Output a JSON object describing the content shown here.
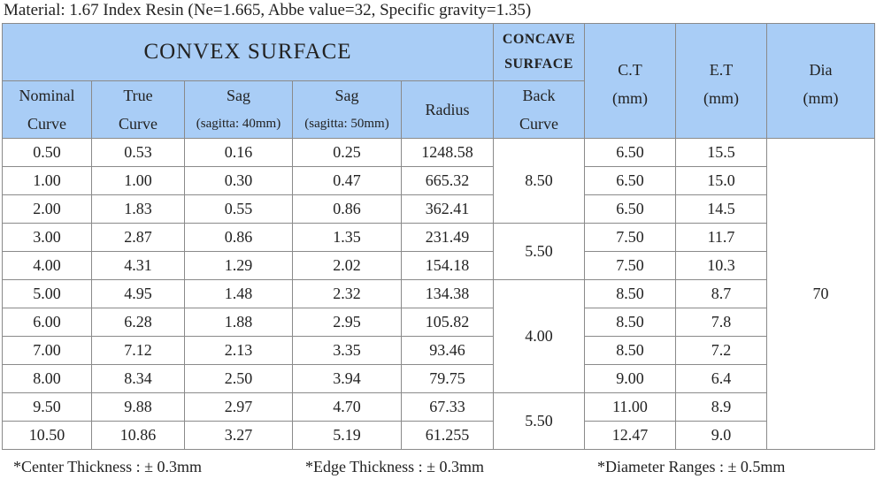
{
  "title": "Material: 1.67 Index Resin (Ne=1.665, Abbe value=32, Specific gravity=1.35)",
  "table": {
    "header": {
      "group_convex": "CONVEX  SURFACE",
      "group_concave": [
        "CONCAVE",
        "SURFACE"
      ],
      "columns": [
        [
          "Nominal",
          "Curve"
        ],
        [
          "True",
          "Curve"
        ],
        [
          "Sag",
          "(sagitta: 40mm)"
        ],
        [
          "Sag",
          "(sagitta: 50mm)"
        ],
        [
          "Radius"
        ],
        [
          "Back",
          "Curve"
        ],
        [
          "C.T",
          "(mm)"
        ],
        [
          "E.T",
          "(mm)"
        ],
        [
          "Dia",
          "(mm)"
        ]
      ]
    },
    "rows": [
      [
        "0.50",
        "0.53",
        "0.16",
        "0.25",
        "1248.58",
        "8.50",
        "6.50",
        "15.5",
        "70"
      ],
      [
        "1.00",
        "1.00",
        "0.30",
        "0.47",
        "665.32",
        null,
        "6.50",
        "15.0",
        null
      ],
      [
        "2.00",
        "1.83",
        "0.55",
        "0.86",
        "362.41",
        null,
        "6.50",
        "14.5",
        null
      ],
      [
        "3.00",
        "2.87",
        "0.86",
        "1.35",
        "231.49",
        "5.50",
        "7.50",
        "11.7",
        null
      ],
      [
        "4.00",
        "4.31",
        "1.29",
        "2.02",
        "154.18",
        null,
        "7.50",
        "10.3",
        null
      ],
      [
        "5.00",
        "4.95",
        "1.48",
        "2.32",
        "134.38",
        "4.00",
        "8.50",
        "8.7",
        null
      ],
      [
        "6.00",
        "6.28",
        "1.88",
        "2.95",
        "105.82",
        null,
        "8.50",
        "7.8",
        null
      ],
      [
        "7.00",
        "7.12",
        "2.13",
        "3.35",
        "93.46",
        null,
        "8.50",
        "7.2",
        null
      ],
      [
        "8.00",
        "8.34",
        "2.50",
        "3.94",
        "79.75",
        null,
        "9.00",
        "6.4",
        null
      ],
      [
        "9.50",
        "9.88",
        "2.97",
        "4.70",
        "67.33",
        "5.50",
        "11.00",
        "8.9",
        null
      ],
      [
        "10.50",
        "10.86",
        "3.27",
        "5.19",
        "61.255",
        null,
        "12.47",
        "9.0",
        null
      ]
    ]
  },
  "notes": [
    "*Center Thickness : ± 0.3mm",
    "*Edge Thickness : ± 0.3mm",
    "*Diameter Ranges : ± 0.5mm"
  ]
}
